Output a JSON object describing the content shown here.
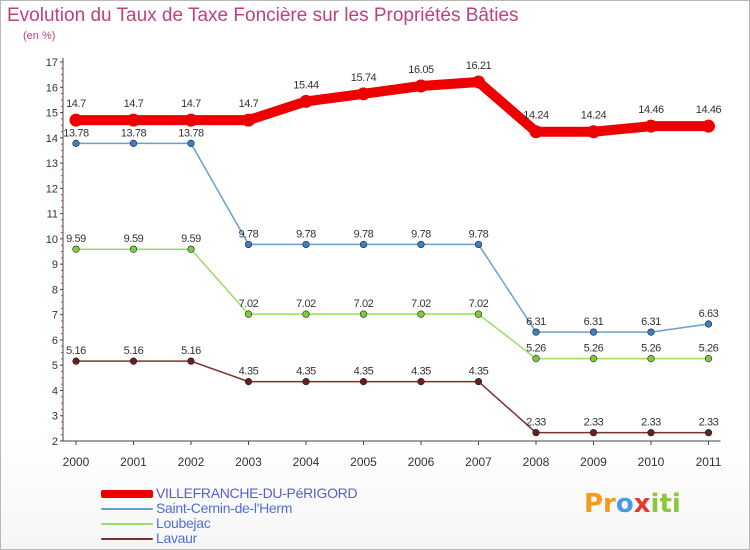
{
  "title": "Evolution du Taux de Taxe Foncière sur les Propriétés Bâties",
  "subtitle": "(en %)",
  "logo": {
    "p1": "Pr",
    "p2": "o",
    "p3": "x",
    "p4": "iti"
  },
  "chart_data": {
    "type": "line",
    "title": "Evolution du Taux de Taxe Foncière sur les Propriétés Bâties",
    "ylabel": "(en %)",
    "xlabel": "",
    "ylim": [
      2,
      17
    ],
    "yticks": [
      2,
      3,
      4,
      5,
      6,
      7,
      8,
      9,
      10,
      11,
      12,
      13,
      14,
      15,
      16,
      17
    ],
    "categories": [
      "2000",
      "2001",
      "2002",
      "2003",
      "2004",
      "2005",
      "2006",
      "2007",
      "2008",
      "2009",
      "2010",
      "2011"
    ],
    "grid": false,
    "series": [
      {
        "name": "VILLEFRANCHE-DU-PéRIGORD",
        "color": "#ee0000",
        "line_weight": "heavy",
        "values": [
          14.7,
          14.7,
          14.7,
          14.7,
          15.44,
          15.74,
          16.05,
          16.21,
          14.24,
          14.24,
          14.46,
          14.46
        ],
        "labels": [
          "14.7",
          "14.7",
          "14.7",
          "14.7",
          "15.44",
          "15.74",
          "16.05",
          "16.21",
          "14.24",
          "14.24",
          "14.46",
          "14.46"
        ]
      },
      {
        "name": "Saint-Cernin-de-l'Herm",
        "color": "#6b9ed0",
        "point_color": "#3d7fc4",
        "line_weight": "thin",
        "values": [
          13.78,
          13.78,
          13.78,
          9.78,
          9.78,
          9.78,
          9.78,
          9.78,
          6.31,
          6.31,
          6.31,
          6.63
        ],
        "labels": [
          "13.78",
          "13.78",
          "13.78",
          "9.78",
          "9.78",
          "9.78",
          "9.78",
          "9.78",
          "6.31",
          "6.31",
          "6.31",
          "6.63"
        ]
      },
      {
        "name": "Loubejac",
        "color": "#99dd66",
        "point_color": "#7fcc3a",
        "line_weight": "thin",
        "values": [
          9.59,
          9.59,
          9.59,
          7.02,
          7.02,
          7.02,
          7.02,
          7.02,
          5.26,
          5.26,
          5.26,
          5.26
        ],
        "labels": [
          "9.59",
          "9.59",
          "9.59",
          "7.02",
          "7.02",
          "7.02",
          "7.02",
          "7.02",
          "5.26",
          "5.26",
          "5.26",
          "5.26"
        ]
      },
      {
        "name": "Lavaur",
        "color": "#7a3030",
        "point_color": "#6a1f1f",
        "line_weight": "thin",
        "values": [
          5.16,
          5.16,
          5.16,
          4.35,
          4.35,
          4.35,
          4.35,
          4.35,
          2.33,
          2.33,
          2.33,
          2.33
        ],
        "labels": [
          "5.16",
          "5.16",
          "5.16",
          "4.35",
          "4.35",
          "4.35",
          "4.35",
          "4.35",
          "2.33",
          "2.33",
          "2.33",
          "2.33"
        ]
      }
    ]
  }
}
